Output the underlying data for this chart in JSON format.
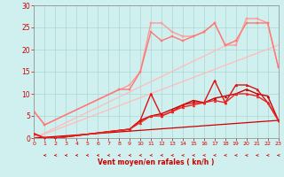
{
  "bg_color": "#cff0ee",
  "grid_color": "#aad8d4",
  "xlabel": "Vent moyen/en rafales ( kn/h )",
  "xlim": [
    0,
    23
  ],
  "ylim": [
    0,
    30
  ],
  "yticks": [
    0,
    5,
    10,
    15,
    20,
    25,
    30
  ],
  "xticks": [
    0,
    1,
    2,
    3,
    4,
    5,
    6,
    7,
    8,
    9,
    10,
    11,
    12,
    13,
    14,
    15,
    16,
    17,
    18,
    19,
    20,
    21,
    22,
    23
  ],
  "series": [
    {
      "x": [
        0,
        23
      ],
      "y": [
        0,
        21
      ],
      "color": "#ffbbbb",
      "lw": 0.9,
      "marker": null,
      "ms": 0
    },
    {
      "x": [
        0,
        19
      ],
      "y": [
        0,
        22
      ],
      "color": "#ffbbbb",
      "lw": 0.9,
      "marker": null,
      "ms": 0
    },
    {
      "x": [
        0,
        1,
        9,
        10,
        11,
        12,
        13,
        14,
        15,
        16,
        17,
        18,
        19,
        20,
        21,
        22,
        23
      ],
      "y": [
        6,
        3,
        12,
        15,
        26,
        26,
        24,
        23,
        23,
        24,
        26,
        21,
        21,
        27,
        27,
        26,
        16
      ],
      "color": "#ff9999",
      "lw": 1.0,
      "marker": "s",
      "ms": 2
    },
    {
      "x": [
        0,
        1,
        8,
        9,
        10,
        11,
        12,
        13,
        14,
        15,
        16,
        17,
        18,
        19,
        20,
        21,
        22,
        23
      ],
      "y": [
        6,
        3,
        11,
        11,
        15,
        24,
        22,
        23,
        22,
        23,
        24,
        26,
        21,
        22,
        26,
        26,
        26,
        16
      ],
      "color": "#ff7777",
      "lw": 1.0,
      "marker": "s",
      "ms": 2
    },
    {
      "x": [
        0,
        23
      ],
      "y": [
        0,
        4
      ],
      "color": "#cc0000",
      "lw": 0.9,
      "marker": null,
      "ms": 0
    },
    {
      "x": [
        0,
        1,
        2,
        9,
        10,
        11,
        12,
        13,
        14,
        15,
        16,
        17,
        18,
        19,
        20,
        21,
        22,
        23
      ],
      "y": [
        1,
        0,
        0,
        2,
        4,
        5,
        5.5,
        6.5,
        7.5,
        8.5,
        8,
        9,
        9.5,
        10,
        11,
        10,
        9.5,
        4
      ],
      "color": "#cc0000",
      "lw": 1.0,
      "marker": "^",
      "ms": 2
    },
    {
      "x": [
        0,
        1,
        2,
        9,
        10,
        11,
        12,
        13,
        14,
        15,
        16,
        17,
        18,
        19,
        20,
        21,
        22,
        23
      ],
      "y": [
        1,
        0,
        0,
        2,
        4,
        10,
        5,
        6,
        7.5,
        8,
        8,
        13,
        8,
        12,
        12,
        11,
        8,
        4
      ],
      "color": "#dd1111",
      "lw": 1.0,
      "marker": "^",
      "ms": 2
    },
    {
      "x": [
        0,
        1,
        2,
        9,
        10,
        11,
        12,
        13,
        14,
        15,
        16,
        17,
        18,
        19,
        20,
        21,
        22,
        23
      ],
      "y": [
        1,
        0,
        0,
        2,
        3.5,
        5,
        5,
        6,
        7,
        7.5,
        8,
        8.5,
        8,
        10,
        10,
        9.5,
        8,
        4
      ],
      "color": "#ee2222",
      "lw": 1.0,
      "marker": "^",
      "ms": 2
    }
  ],
  "arrow_color": "#cc0000",
  "tick_color": "#cc0000",
  "xlabel_color": "#cc0000"
}
